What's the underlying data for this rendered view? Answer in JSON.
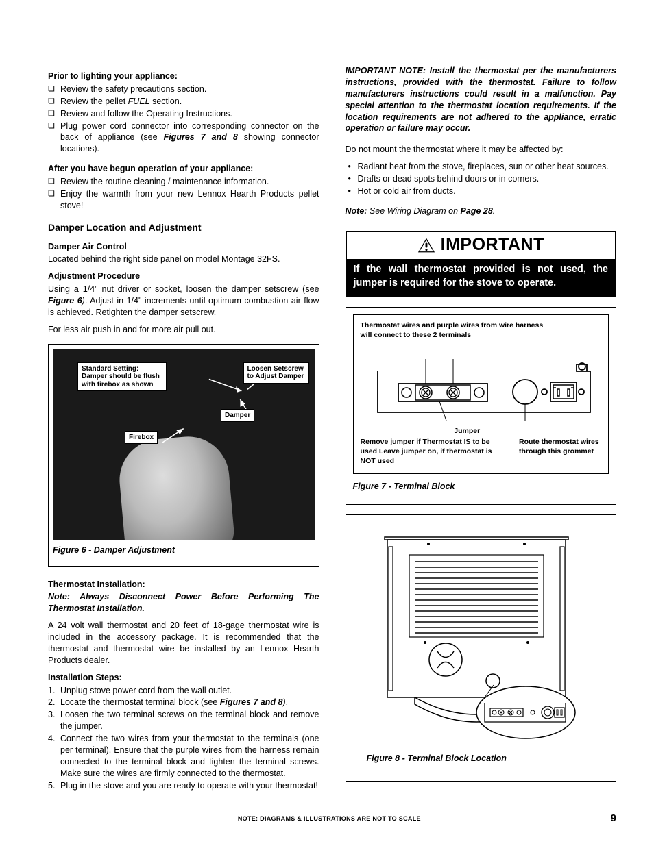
{
  "left": {
    "prior_head": "Prior to lighting your appliance:",
    "prior_items": [
      "Review the safety precautions section.",
      "Review the pellet <i>FUEL</i> section.",
      "Review and follow the Operating Instructions.",
      "Plug power cord connector into corresponding connector on the back of appliance (see <b><i>Figures 7 and 8</i></b>  showing connector locations)."
    ],
    "after_head": "After you have begun operation of your appliance:",
    "after_items": [
      "Review the routine cleaning / maintenance information.",
      "Enjoy the warmth from your new Lennox Hearth Products pellet stove!"
    ],
    "damper_section": "Damper Location and Adjustment",
    "damper_air_head": "Damper Air Control",
    "damper_air_body": "Located behind the right side panel on model Montage 32FS.",
    "adj_head": "Adjustment Procedure",
    "adj_body": "Using a 1/4\" nut driver or socket, loosen the damper setscrew (see <b><i>Figure 6</i></b><i>)</i>.  Adjust in 1/4\" increments until optimum combustion air flow is achieved.  Retighten the damper setscrew.",
    "adj_note": "For less air push in and for more air pull out.",
    "fig6_labels": {
      "standard": "Standard Setting: Damper should be flush with firebox as shown",
      "loosen": "Loosen Setscrew to Adjust Damper",
      "damper": "Damper",
      "firebox": "Firebox"
    },
    "fig6_caption": "Figure 6 - Damper Adjustment",
    "thermo_head": "Thermostat Installation:",
    "thermo_note": "Note: Always Disconnect Power Before Performing The Thermostat Installation.",
    "thermo_body": "A 24 volt wall thermostat and 20 feet of 18-gage thermostat wire is included in the accessory package. It is recommended that the thermostat and thermostat wire be installed by an Lennox Hearth Products dealer.",
    "steps_head": "Installation Steps:",
    "steps": [
      "Unplug stove power cord from the wall outlet.",
      "Locate the thermostat terminal block (see <b><i>Figures 7 and 8</i></b><i>)</i>.",
      "Loosen the two terminal screws on the terminal block and remove the jumper.",
      "Connect the two wires from your thermostat to the terminals (one per terminal). Ensure that the purple wires from the harness remain connected to the terminal block and tighten the terminal screws. Make sure the wires are firmly connected to the thermostat.",
      "Plug in the stove and you are ready to operate with your thermostat!"
    ]
  },
  "right": {
    "important_note": "IMPORTANT NOTE:  Install the thermostat per the manufacturers instructions, provided with the thermostat.  Failure to follow manufacturers instructions could result in a malfunction. Pay special attention to the thermostat location requirements. If the location requirements are not adhered to the appliance, erratic operation or failure may occur.",
    "mount_intro": "Do not mount the thermostat where it may be affected by:",
    "mount_items": [
      "Radiant heat from the stove, fireplaces, sun or other heat sources.",
      "Drafts or dead spots behind doors or in corners.",
      "Hot or cold air from ducts."
    ],
    "wiring_note_label": "Note:",
    "wiring_note_rest": " See Wiring Diagram on ",
    "wiring_note_page": "Page 28",
    "important_title": "IMPORTANT",
    "important_body": "If the wall thermostat provided is not used, the jumper is required for the stove to operate.",
    "fig7": {
      "top_note": "Thermostat wires and purple wires from wire harness will connect to these 2 terminals",
      "jumper_label": "Jumper",
      "bottom_left": "Remove jumper if Thermostat IS to be used Leave jumper on, if thermostat is NOT used",
      "bottom_right": "Route thermostat wires through this grommet",
      "caption": "Figure 7 - Terminal Block"
    },
    "fig8_caption": "Figure 8 - Terminal Block Location"
  },
  "footer": {
    "note": "NOTE: DIAGRAMS & ILLUSTRATIONS ARE NOT TO SCALE",
    "page": "9"
  },
  "colors": {
    "black": "#000000",
    "white": "#ffffff"
  }
}
